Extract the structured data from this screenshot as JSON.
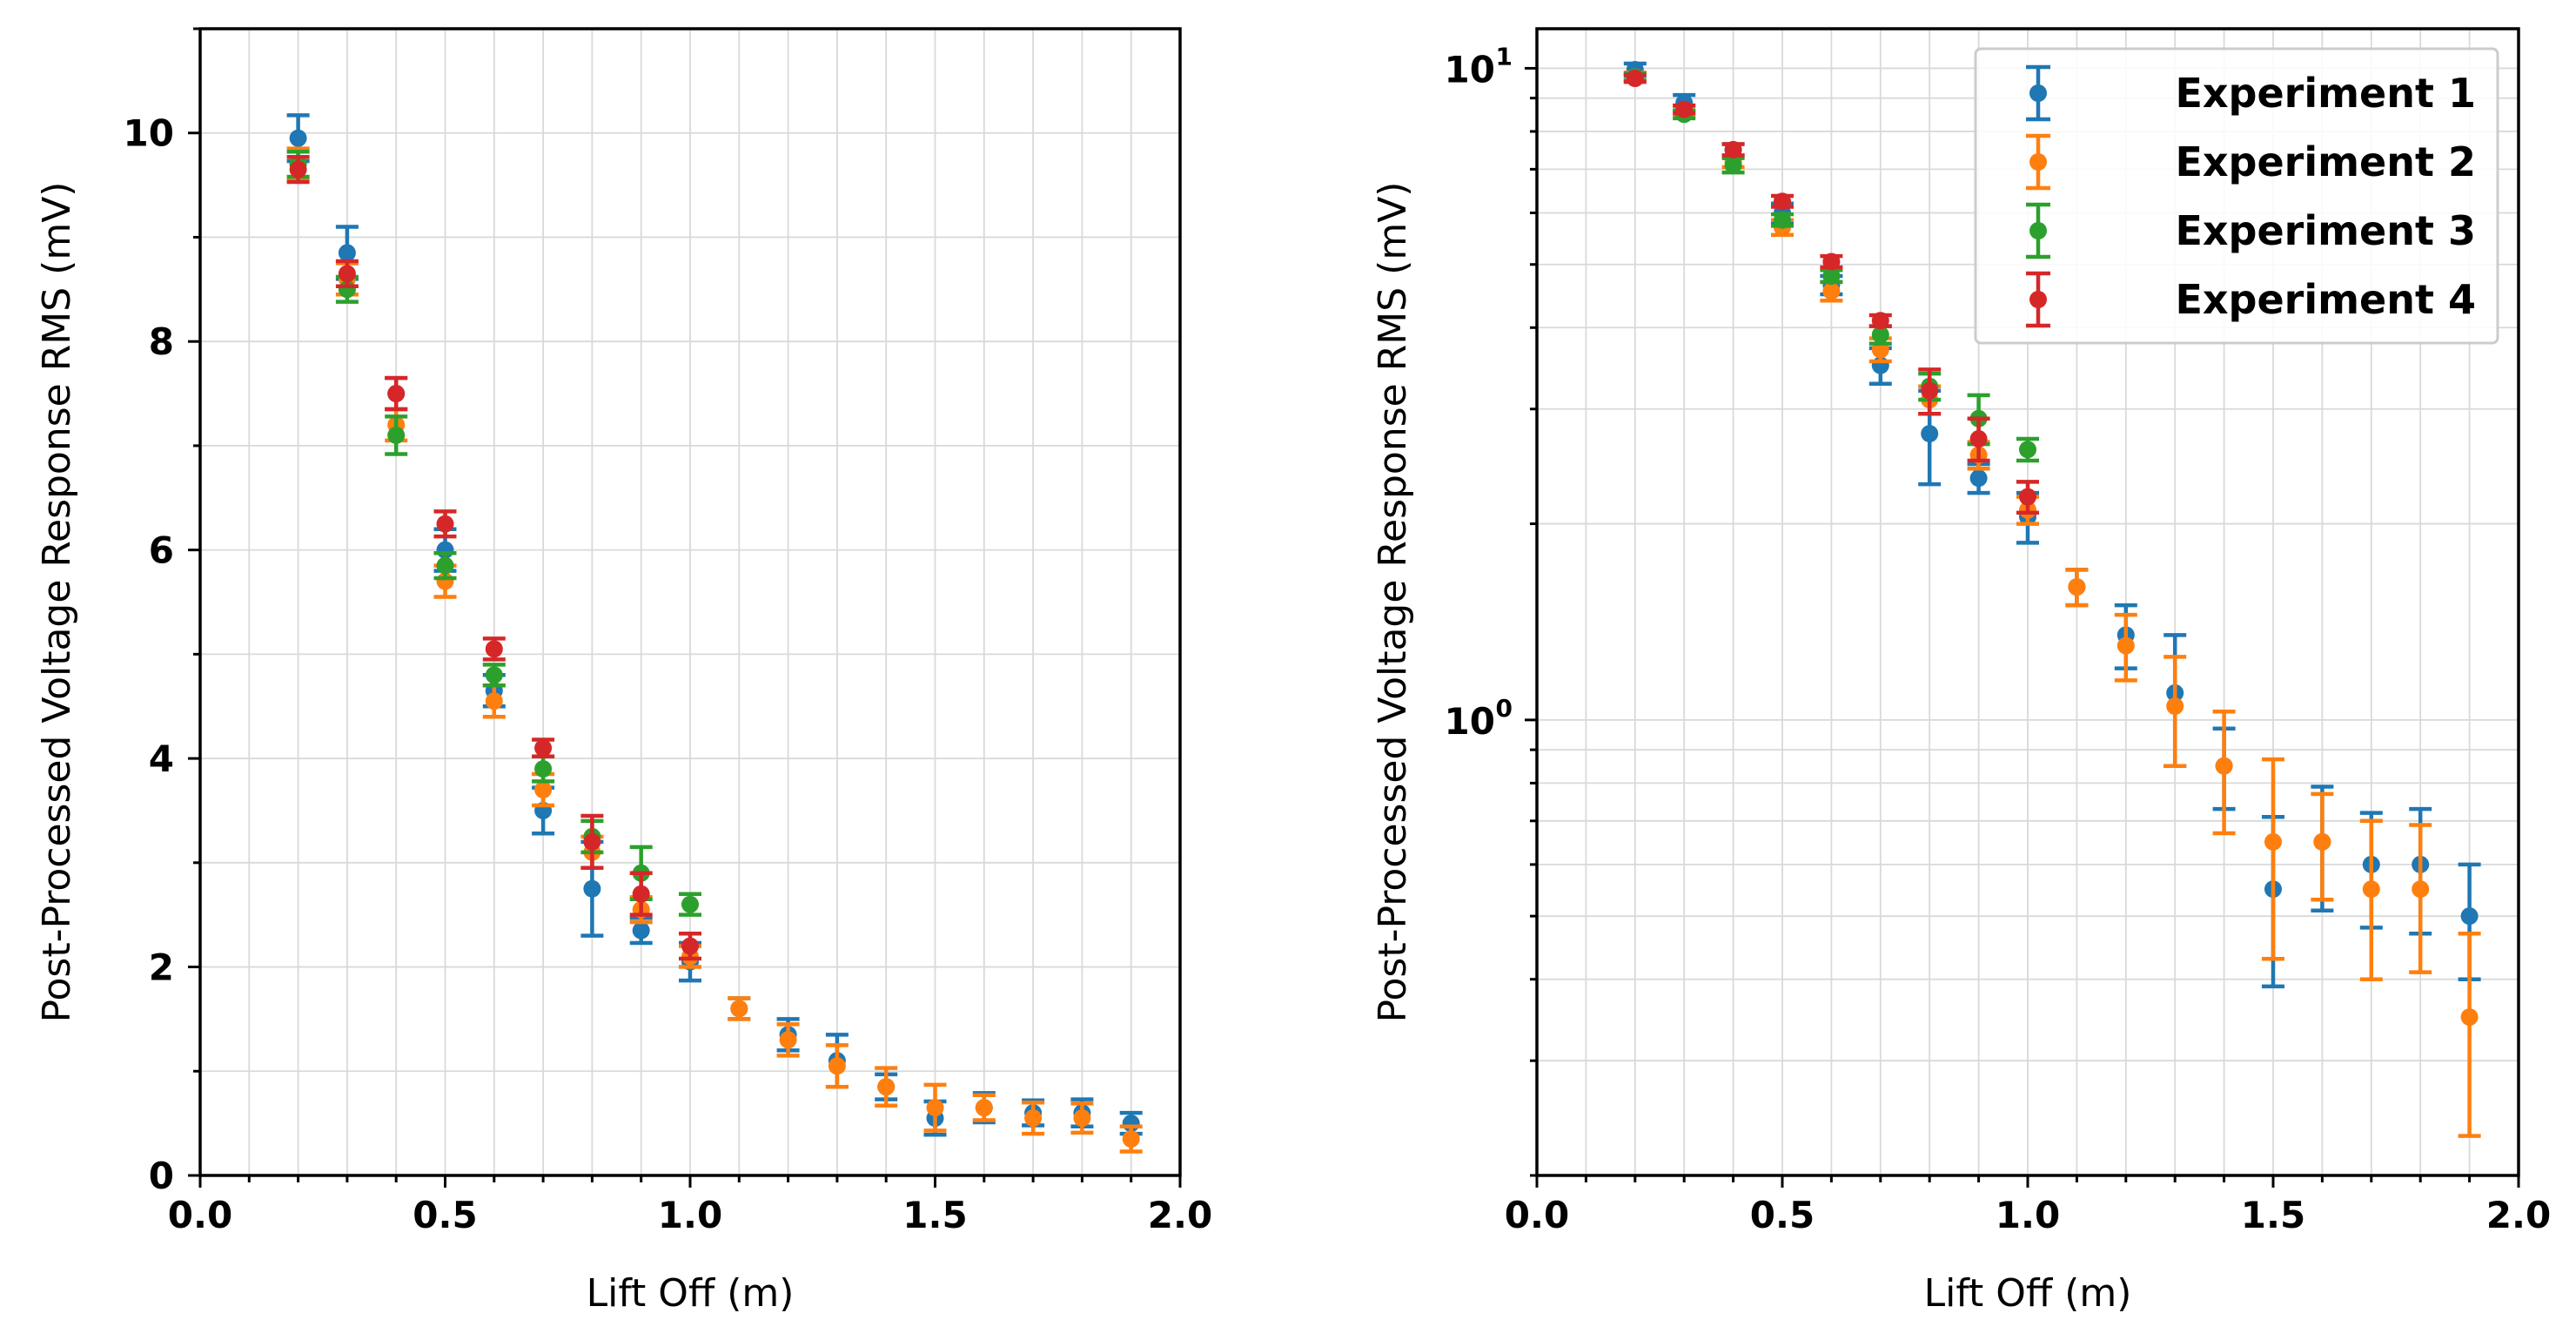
{
  "chart_data": [
    {
      "type": "scatter",
      "title": "",
      "xlabel": "Lift Off (m)",
      "ylabel": "Post-Processed Voltage Response RMS (mV)",
      "xlim": [
        0,
        2.0
      ],
      "ylim": [
        0,
        11
      ],
      "yscale": "linear",
      "xticks": [
        "0.0",
        "0.5",
        "1.0",
        "1.5",
        "2.0"
      ],
      "yticks": [
        "0",
        "2",
        "4",
        "6",
        "8",
        "10"
      ],
      "grid": true,
      "legend": "none"
    },
    {
      "type": "scatter",
      "title": "",
      "xlabel": "Lift Off (m)",
      "ylabel": "Post-Processed Voltage Response RMS (mV)",
      "xlim": [
        0,
        2.0
      ],
      "ylim": [
        0.2,
        11.5
      ],
      "yscale": "log",
      "xticks": [
        "0.0",
        "0.5",
        "1.0",
        "1.5",
        "2.0"
      ],
      "yticks_base": "10",
      "yticks_exp": [
        "0",
        "1"
      ],
      "grid": true,
      "legend": "top-right"
    }
  ],
  "series": [
    {
      "name": "Experiment 1",
      "color": "#1f77b4",
      "x": [
        0.2,
        0.3,
        0.4,
        0.5,
        0.6,
        0.7,
        0.8,
        0.9,
        1.0,
        1.1,
        1.2,
        1.3,
        1.4,
        1.5,
        1.6,
        1.7,
        1.8,
        1.9
      ],
      "y": [
        9.95,
        8.85,
        7.5,
        6.0,
        4.65,
        3.5,
        2.75,
        2.35,
        2.05,
        1.6,
        1.35,
        1.1,
        0.85,
        0.55,
        0.65,
        0.6,
        0.6,
        0.5
      ],
      "err": [
        0.22,
        0.25,
        0.15,
        0.2,
        0.15,
        0.22,
        0.45,
        0.12,
        0.18,
        0.1,
        0.15,
        0.25,
        0.12,
        0.16,
        0.14,
        0.12,
        0.13,
        0.1
      ]
    },
    {
      "name": "Experiment 2",
      "color": "#ff7f0e",
      "x": [
        0.2,
        0.3,
        0.4,
        0.5,
        0.6,
        0.7,
        0.8,
        0.9,
        1.0,
        1.1,
        1.2,
        1.3,
        1.4,
        1.5,
        1.6,
        1.7,
        1.8,
        1.9
      ],
      "y": [
        9.7,
        8.6,
        7.2,
        5.7,
        4.55,
        3.7,
        3.1,
        2.55,
        2.1,
        1.6,
        1.3,
        1.05,
        0.85,
        0.65,
        0.65,
        0.55,
        0.55,
        0.35
      ],
      "err": [
        0.15,
        0.15,
        0.15,
        0.15,
        0.15,
        0.15,
        0.15,
        0.12,
        0.1,
        0.1,
        0.15,
        0.2,
        0.18,
        0.22,
        0.12,
        0.15,
        0.14,
        0.12
      ]
    },
    {
      "name": "Experiment 3",
      "color": "#2ca02c",
      "x": [
        0.2,
        0.3,
        0.4,
        0.5,
        0.6,
        0.7,
        0.8,
        0.9,
        1.0
      ],
      "y": [
        9.7,
        8.5,
        7.1,
        5.85,
        4.8,
        3.9,
        3.25,
        2.9,
        2.6
      ],
      "err": [
        0.12,
        0.12,
        0.18,
        0.12,
        0.1,
        0.12,
        0.15,
        0.25,
        0.1
      ]
    },
    {
      "name": "Experiment 4",
      "color": "#d62728",
      "x": [
        0.2,
        0.3,
        0.4,
        0.5,
        0.6,
        0.7,
        0.8,
        0.9,
        1.0
      ],
      "y": [
        9.65,
        8.65,
        7.5,
        6.25,
        5.05,
        4.1,
        3.2,
        2.7,
        2.2
      ],
      "err": [
        0.12,
        0.12,
        0.15,
        0.12,
        0.1,
        0.08,
        0.25,
        0.2,
        0.12
      ]
    }
  ]
}
